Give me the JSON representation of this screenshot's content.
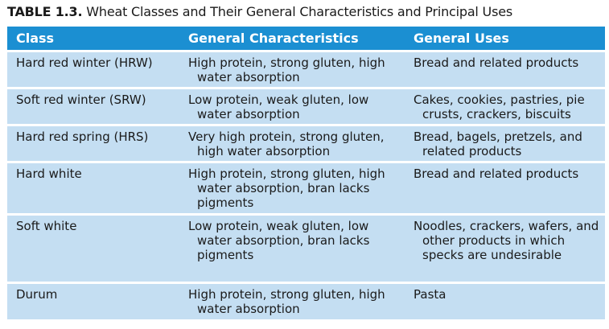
{
  "caption": {
    "label": "TABLE 1.3.",
    "title": "Wheat Classes and Their General Characteristics and Principal Uses"
  },
  "table": {
    "headers": [
      "Class",
      "General Characteristics",
      "General Uses"
    ],
    "rows": [
      [
        "Hard red winter (HRW)",
        "High protein, strong gluten, high water absorption",
        "Bread and related products"
      ],
      [
        "Soft red winter (SRW)",
        "Low protein, weak gluten, low water absorption",
        "Cakes, cookies, pastries, pie crusts, crackers, biscuits"
      ],
      [
        "Hard red spring (HRS)",
        "Very high protein, strong gluten, high water absorption",
        "Bread, bagels, pretzels, and related products"
      ],
      [
        "Hard white",
        "High protein, strong gluten, high water absorption, bran lacks pigments",
        "Bread and related products"
      ],
      [
        "Soft white",
        "Low protein, weak gluten, low water absorption, bran lacks pigments",
        "Noodles, crackers, wafers, and other products in which specks are undesirable"
      ],
      [
        "Durum",
        "High protein, strong gluten, high water absorption",
        "Pasta"
      ]
    ]
  },
  "colors": {
    "header_bg": "#1b8fd2",
    "row_bg": "#c4def2"
  }
}
